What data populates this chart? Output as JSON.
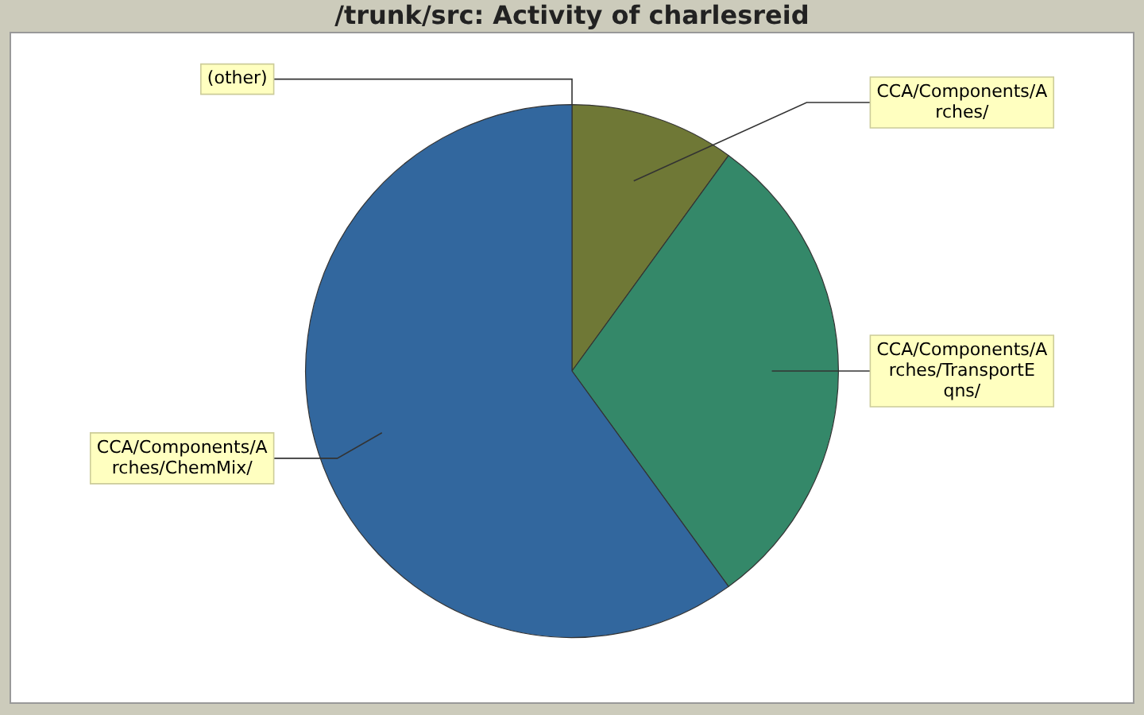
{
  "chart_data": {
    "type": "pie",
    "title": "/trunk/src: Activity of charlesreid",
    "categories": [
      "(other)",
      "CCA/Components/Arches/",
      "CCA/Components/Arches/TransportEqns/",
      "CCA/Components/Arches/ChemMix/"
    ],
    "values": [
      0,
      10,
      30,
      60
    ],
    "colors": [
      "#8c8c8c",
      "#6f7836",
      "#348869",
      "#32679e"
    ],
    "legend": false
  }
}
